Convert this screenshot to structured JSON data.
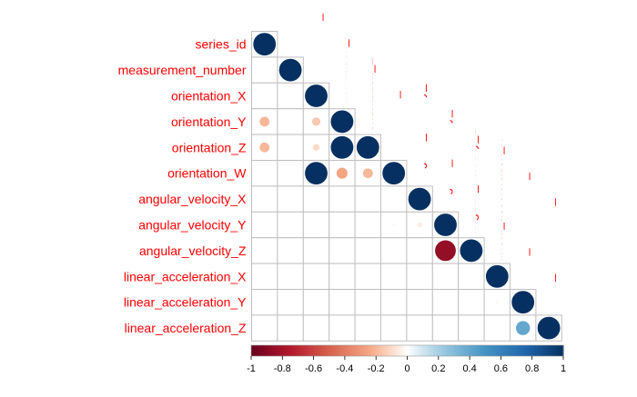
{
  "chart_data": {
    "type": "heatmap",
    "subtype": "correlation-matrix-lower-triangle",
    "shape": "circle",
    "variables": [
      "series_id",
      "measurement_number",
      "orientation_X",
      "orientation_Y",
      "orientation_Z",
      "orientation_W",
      "angular_velocity_X",
      "angular_velocity_Y",
      "angular_velocity_Z",
      "linear_acceleration_X",
      "linear_acceleration_Y",
      "linear_acceleration_Z"
    ],
    "values": [
      [
        1
      ],
      [
        0,
        1
      ],
      [
        0.01,
        0,
        1
      ],
      [
        -0.2,
        0,
        -0.15,
        1
      ],
      [
        -0.2,
        0,
        -0.1,
        1,
        1
      ],
      [
        0.01,
        0,
        1,
        -0.25,
        -0.2,
        1
      ],
      [
        0,
        0,
        0,
        0,
        0,
        0,
        1
      ],
      [
        0,
        0,
        0.01,
        0.01,
        0.01,
        0.02,
        -0.05,
        1
      ],
      [
        0,
        0,
        0.01,
        0,
        0,
        0,
        0,
        -0.85,
        1
      ],
      [
        0,
        0,
        0,
        0,
        0,
        0,
        0,
        0,
        0,
        1
      ],
      [
        0,
        0,
        0,
        0,
        0,
        0,
        0,
        0,
        0,
        0.02,
        1
      ],
      [
        0,
        0,
        0,
        0,
        0,
        0,
        0.01,
        0,
        0,
        0,
        0.4,
        1
      ]
    ],
    "color_scale": {
      "ticks": [
        "-1",
        "-0.8",
        "-0.6",
        "-0.4",
        "-0.2",
        "0",
        "0.2",
        "0.4",
        "0.6",
        "0.8",
        "1"
      ],
      "range": [
        -1,
        1
      ],
      "negative_color": "#67001f",
      "neutral_color": "#ffffff",
      "positive_color": "#053061"
    },
    "label_color": "#ff0000",
    "grid_color": "#c0c0c0",
    "legend_placement": "bottom"
  }
}
